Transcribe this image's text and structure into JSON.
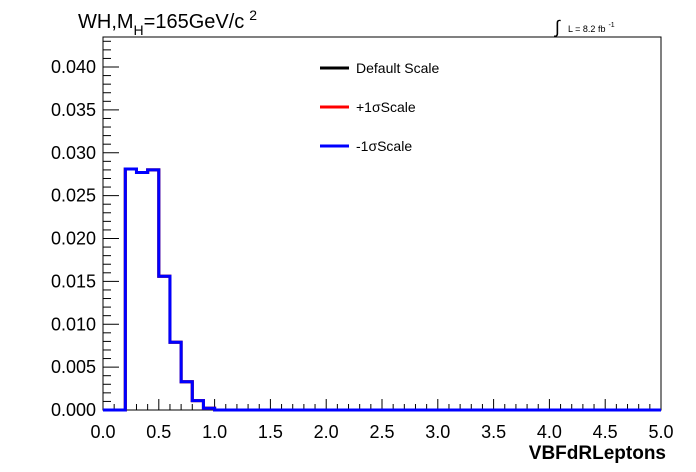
{
  "chart_data": {
    "type": "line",
    "title": {
      "prefix": "WH,M",
      "subscript": "H",
      "value": "=165GeV/c",
      "superscript": "2"
    },
    "luminosity": {
      "integral_symbol": "∫",
      "text": "L = 8.2 fb",
      "superscript": "-1"
    },
    "xlabel": "VBFdRLeptons",
    "ylabel": "",
    "xlim": [
      0.0,
      5.0
    ],
    "ylim": [
      0.0,
      0.0435
    ],
    "x_ticks": [
      "0.0",
      "0.5",
      "1.0",
      "1.5",
      "2.0",
      "2.5",
      "3.0",
      "3.5",
      "4.0",
      "4.5",
      "5.0"
    ],
    "y_ticks": [
      "0.000",
      "0.005",
      "0.010",
      "0.015",
      "0.020",
      "0.025",
      "0.030",
      "0.035",
      "0.040"
    ],
    "legend_position": "top-center",
    "bin_edges": [
      0.0,
      0.1,
      0.2,
      0.3,
      0.4,
      0.5,
      0.6,
      0.7,
      0.8,
      0.9,
      1.0,
      1.1,
      1.2,
      1.3,
      1.4,
      1.5,
      1.6,
      1.7,
      1.8,
      1.9,
      2.0,
      2.1,
      2.2,
      2.3,
      2.4,
      2.5,
      2.6,
      2.7,
      2.8,
      2.9,
      3.0,
      3.1,
      3.2,
      3.3,
      3.4,
      3.5,
      3.6,
      3.7,
      3.8,
      3.9,
      4.0,
      4.1,
      4.2,
      4.3,
      4.4,
      4.5,
      4.6,
      4.7,
      4.8,
      4.9,
      5.0
    ],
    "series": [
      {
        "name": "Default Scale",
        "color": "#000000",
        "values": [
          0.0,
          0.0,
          0.0281,
          0.0277,
          0.028,
          0.0156,
          0.0079,
          0.0033,
          0.0011,
          0.0002,
          0.0,
          0.0,
          0.0,
          0.0,
          0.0,
          0.0,
          0.0,
          0.0,
          0.0,
          0.0,
          0.0,
          0.0,
          0.0,
          0.0,
          0.0,
          0.0,
          0.0,
          0.0,
          0.0,
          0.0,
          0.0,
          0.0,
          0.0,
          0.0,
          0.0,
          0.0,
          0.0,
          0.0,
          0.0,
          0.0,
          0.0,
          0.0,
          0.0,
          0.0,
          0.0,
          0.0,
          0.0,
          0.0,
          0.0,
          0.0
        ]
      },
      {
        "name": "+1σScale",
        "color": "#ff0000",
        "values": [
          0.0,
          0.0,
          0.0281,
          0.0277,
          0.028,
          0.0156,
          0.0079,
          0.0033,
          0.0011,
          0.0002,
          0.0,
          0.0,
          0.0,
          0.0,
          0.0,
          0.0,
          0.0,
          0.0,
          0.0,
          0.0,
          0.0,
          0.0,
          0.0,
          0.0,
          0.0,
          0.0,
          0.0,
          0.0,
          0.0,
          0.0,
          0.0,
          0.0,
          0.0,
          0.0,
          0.0,
          0.0,
          0.0,
          0.0,
          0.0,
          0.0,
          0.0,
          0.0,
          0.0,
          0.0,
          0.0,
          0.0,
          0.0,
          0.0,
          0.0,
          0.0
        ]
      },
      {
        "name": "-1σScale",
        "color": "#0000ff",
        "values": [
          0.0,
          0.0,
          0.0281,
          0.0277,
          0.028,
          0.0156,
          0.0079,
          0.0033,
          0.0011,
          0.0002,
          0.0,
          0.0,
          0.0,
          0.0,
          0.0,
          0.0,
          0.0,
          0.0,
          0.0,
          0.0,
          0.0,
          0.0,
          0.0,
          0.0,
          0.0,
          0.0,
          0.0,
          0.0,
          0.0,
          0.0,
          0.0,
          0.0,
          0.0,
          0.0,
          0.0,
          0.0,
          0.0,
          0.0,
          0.0,
          0.0,
          0.0,
          0.0,
          0.0,
          0.0,
          0.0,
          0.0,
          0.0,
          0.0,
          0.0,
          0.0
        ]
      }
    ]
  }
}
